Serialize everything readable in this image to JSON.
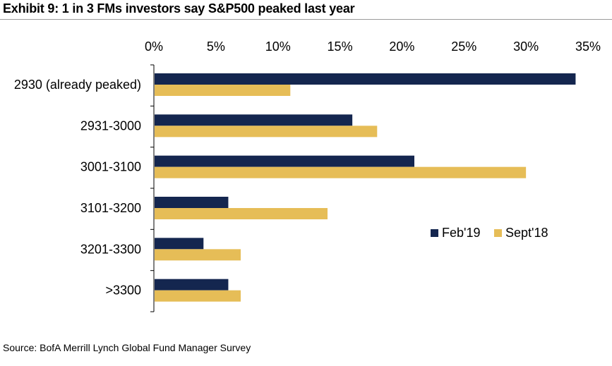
{
  "title": "Exhibit 9: 1 in 3 FMs investors say S&P500 peaked last year",
  "source": "Source: BofA Merrill Lynch Global Fund Manager Survey",
  "colors": {
    "feb19": "#14264f",
    "sept18": "#e6bd57",
    "axis": "#000000",
    "rule": "#9a9a9a"
  },
  "chart_data": {
    "type": "bar",
    "orientation": "horizontal",
    "title": "Exhibit 9: 1 in 3 FMs investors say S&P500 peaked last year",
    "categories": [
      "2930 (already peaked)",
      "2931-3000",
      "3001-3100",
      "3101-3200",
      "3201-3300",
      ">3300"
    ],
    "series": [
      {
        "name": "Feb'19",
        "values": [
          34,
          16,
          21,
          6,
          4,
          6
        ]
      },
      {
        "name": "Sept'18",
        "values": [
          11,
          18,
          30,
          14,
          7,
          7
        ]
      }
    ],
    "xlim": [
      0,
      35
    ],
    "xticks": [
      0,
      5,
      10,
      15,
      20,
      25,
      30,
      35
    ],
    "tick_labels": [
      "0%",
      "5%",
      "10%",
      "15%",
      "20%",
      "25%",
      "30%",
      "35%"
    ],
    "xlabel": "",
    "ylabel": "",
    "legend_position": "right-middle",
    "grid": false
  }
}
